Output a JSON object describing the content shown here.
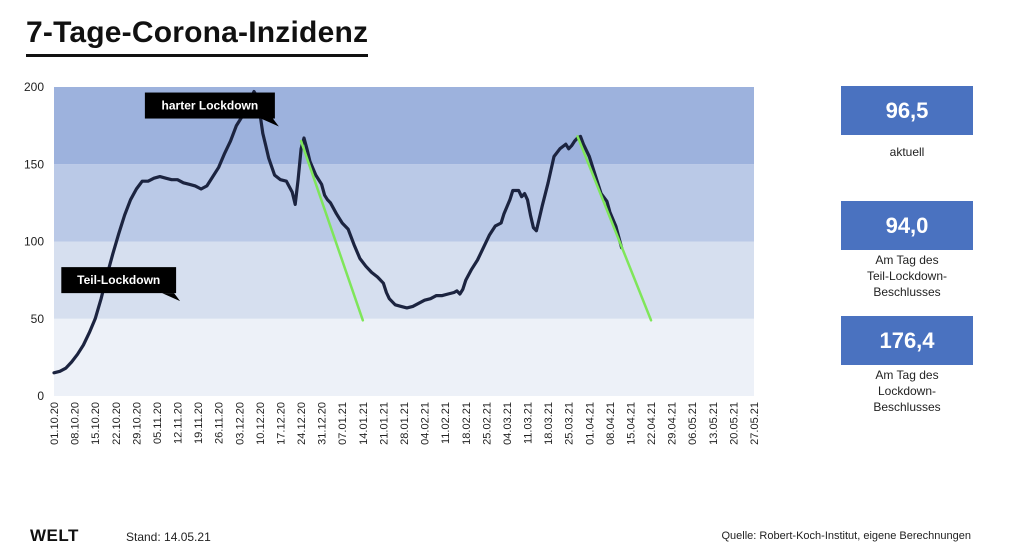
{
  "header": {
    "title": "7-Tage-Corona-Inzidenz"
  },
  "chart_data": {
    "type": "line",
    "title": "7-Tage-Corona-Inzidenz",
    "ylim": [
      0,
      200
    ],
    "y_ticks": [
      0,
      50,
      100,
      150,
      200
    ],
    "x_tick_labels": [
      "01.10.20",
      "08.10.20",
      "15.10.20",
      "22.10.20",
      "29.10.20",
      "05.11.20",
      "12.11.20",
      "19.11.20",
      "26.11.20",
      "03.12.20",
      "10.12.20",
      "17.12.20",
      "24.12.20",
      "31.12.20",
      "07.01.21",
      "14.01.21",
      "21.01.21",
      "28.01.21",
      "04.02.21",
      "11.02.21",
      "18.02.21",
      "25.02.21",
      "04.03.21",
      "11.03.21",
      "18.03.21",
      "25.03.21",
      "01.04.21",
      "08.04.21",
      "15.04.21",
      "22.04.21",
      "29.04.21",
      "06.05.21",
      "13.05.21",
      "20.05.21",
      "27.05.21"
    ],
    "bands": [
      {
        "from": 0,
        "to": 50,
        "color": "#edf1f8"
      },
      {
        "from": 50,
        "to": 100,
        "color": "#d6dfef"
      },
      {
        "from": 100,
        "to": 150,
        "color": "#bac9e7"
      },
      {
        "from": 150,
        "to": 200,
        "color": "#9db2dd"
      }
    ],
    "series": [
      {
        "color": "#1c2440",
        "points": [
          [
            0,
            15
          ],
          [
            2,
            16
          ],
          [
            4,
            18
          ],
          [
            6,
            22
          ],
          [
            8,
            27
          ],
          [
            10,
            33
          ],
          [
            12,
            41
          ],
          [
            14,
            50
          ],
          [
            16,
            63
          ],
          [
            18,
            78
          ],
          [
            20,
            92
          ],
          [
            22,
            105
          ],
          [
            24,
            117
          ],
          [
            26,
            127
          ],
          [
            28,
            134
          ],
          [
            30,
            139
          ],
          [
            32,
            139
          ],
          [
            34,
            141
          ],
          [
            36,
            142
          ],
          [
            38,
            141
          ],
          [
            40,
            140
          ],
          [
            42,
            140
          ],
          [
            44,
            138
          ],
          [
            46,
            137
          ],
          [
            48,
            136
          ],
          [
            50,
            134
          ],
          [
            52,
            136
          ],
          [
            54,
            142
          ],
          [
            56,
            148
          ],
          [
            58,
            157
          ],
          [
            60,
            165
          ],
          [
            62,
            175
          ],
          [
            64,
            181
          ],
          [
            66,
            187
          ],
          [
            67,
            193
          ],
          [
            68,
            197
          ],
          [
            69,
            194
          ],
          [
            70,
            183
          ],
          [
            71,
            170
          ],
          [
            72,
            162
          ],
          [
            73,
            154
          ],
          [
            75,
            143
          ],
          [
            77,
            140
          ],
          [
            79,
            139
          ],
          [
            81,
            132
          ],
          [
            82,
            124
          ],
          [
            83,
            140
          ],
          [
            84,
            160
          ],
          [
            85,
            167
          ],
          [
            86,
            160
          ],
          [
            87,
            152
          ],
          [
            89,
            143
          ],
          [
            91,
            137
          ],
          [
            92,
            130
          ],
          [
            93,
            127
          ],
          [
            94,
            125
          ],
          [
            96,
            118
          ],
          [
            98,
            112
          ],
          [
            100,
            108
          ],
          [
            102,
            98
          ],
          [
            104,
            89
          ],
          [
            106,
            84
          ],
          [
            108,
            80
          ],
          [
            110,
            77
          ],
          [
            112,
            73
          ],
          [
            113,
            67
          ],
          [
            114,
            63
          ],
          [
            116,
            59
          ],
          [
            118,
            58
          ],
          [
            120,
            57
          ],
          [
            122,
            58
          ],
          [
            124,
            60
          ],
          [
            126,
            62
          ],
          [
            128,
            63
          ],
          [
            130,
            65
          ],
          [
            132,
            65
          ],
          [
            134,
            66
          ],
          [
            136,
            67
          ],
          [
            137,
            68
          ],
          [
            138,
            66
          ],
          [
            139,
            69
          ],
          [
            140,
            75
          ],
          [
            142,
            82
          ],
          [
            144,
            88
          ],
          [
            146,
            96
          ],
          [
            148,
            104
          ],
          [
            150,
            110
          ],
          [
            152,
            112
          ],
          [
            153,
            118
          ],
          [
            155,
            127
          ],
          [
            156,
            133
          ],
          [
            158,
            133
          ],
          [
            159,
            129
          ],
          [
            160,
            131
          ],
          [
            161,
            127
          ],
          [
            162,
            117
          ],
          [
            163,
            109
          ],
          [
            164,
            107
          ],
          [
            166,
            123
          ],
          [
            168,
            138
          ],
          [
            170,
            155
          ],
          [
            172,
            160
          ],
          [
            174,
            163
          ],
          [
            175,
            160
          ],
          [
            176,
            162
          ],
          [
            177,
            165
          ],
          [
            178,
            167
          ],
          [
            179,
            168
          ],
          [
            180,
            163
          ],
          [
            182,
            155
          ],
          [
            184,
            143
          ],
          [
            186,
            131
          ],
          [
            188,
            126
          ],
          [
            189,
            119
          ],
          [
            191,
            110
          ],
          [
            193,
            96
          ]
        ]
      }
    ],
    "trend_lines": [
      {
        "color": "#7fe65a",
        "points": [
          [
            84,
            165
          ],
          [
            105,
            49
          ]
        ]
      },
      {
        "color": "#7fe65a",
        "points": [
          [
            178,
            168
          ],
          [
            203,
            49
          ]
        ]
      }
    ],
    "annotations": [
      {
        "text": "harter Lockdown",
        "x": 53,
        "y": 188
      },
      {
        "text": "Teil-Lockdown",
        "x": 22,
        "y": 75
      }
    ]
  },
  "stats": [
    {
      "value": "96,5",
      "label_lines": [
        "aktuell"
      ]
    },
    {
      "value": "94,0",
      "label_lines": [
        "Am Tag des",
        "Teil-Lockdown-",
        "Beschlusses"
      ]
    },
    {
      "value": "176,4",
      "label_lines": [
        "Am Tag des",
        "Lockdown-",
        "Beschlusses"
      ]
    }
  ],
  "footer": {
    "logo": "WELT",
    "stand": "Stand:  14.05.21",
    "source": "Quelle: Robert-Koch-Institut, eigene Berechnungen"
  }
}
